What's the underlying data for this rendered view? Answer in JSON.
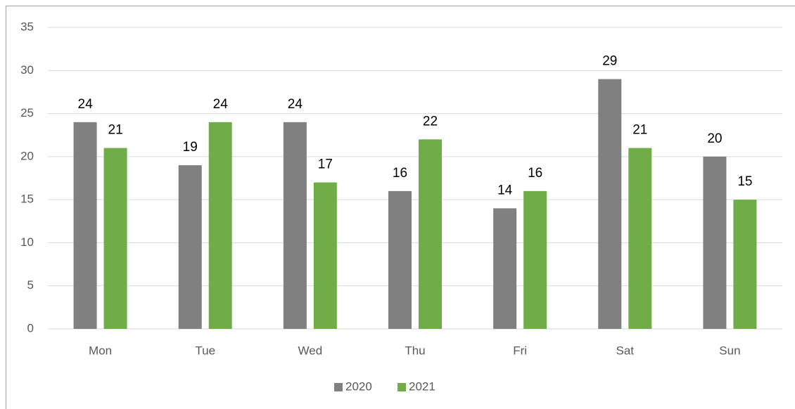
{
  "chart_data": {
    "type": "bar",
    "categories": [
      "Mon",
      "Tue",
      "Wed",
      "Thu",
      "Fri",
      "Sat",
      "Sun"
    ],
    "series": [
      {
        "name": "2020",
        "color": "#808080",
        "values": [
          24,
          19,
          24,
          16,
          14,
          29,
          20
        ]
      },
      {
        "name": "2021",
        "color": "#70ad47",
        "values": [
          21,
          24,
          17,
          22,
          16,
          21,
          15
        ]
      }
    ],
    "ylim": [
      0,
      35
    ],
    "yticks": [
      0,
      5,
      10,
      15,
      20,
      25,
      30,
      35
    ],
    "grid": true,
    "legend": "bottom"
  }
}
